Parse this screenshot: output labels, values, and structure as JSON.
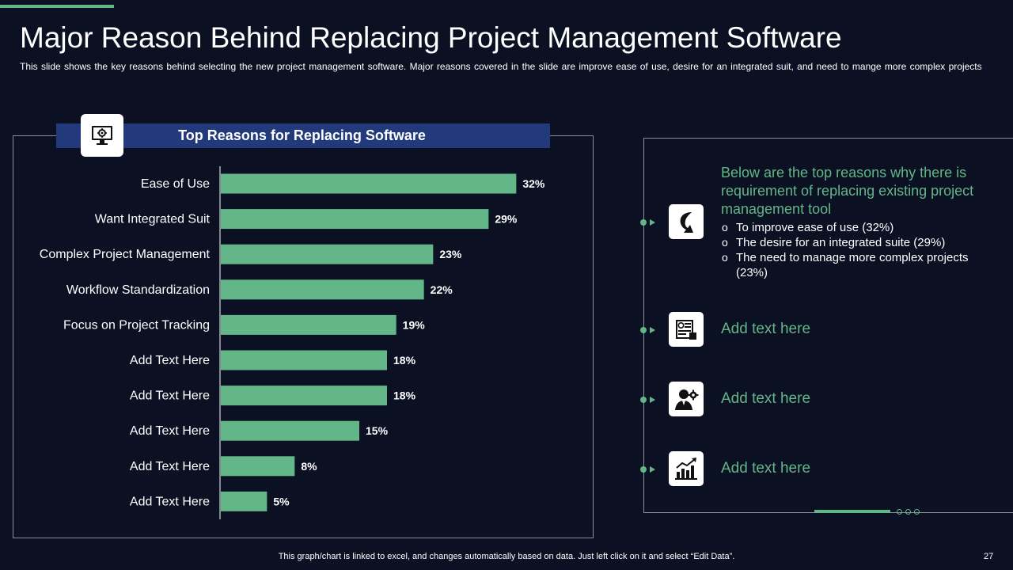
{
  "slide": {
    "title": "Major Reason Behind Replacing Project Management Software",
    "subtitle": "This slide shows the key reasons behind  selecting the new project management  software.  Major reasons covered  in the slide are improve  ease of use,  desire for an integrated  suit, and need to mange more complex projects",
    "footer": "This graph/chart is linked to excel,  and changes automatically based on data. Just left click on it and select “Edit Data”.",
    "page_number": "27"
  },
  "colors": {
    "background": "#0b1023",
    "accent_green": "#62b688",
    "header_blue": "#223a7c",
    "bar_green": "#62b688"
  },
  "chart_data": {
    "type": "bar",
    "orientation": "horizontal",
    "title": "Top Reasons for Replacing Software",
    "categories": [
      "Ease of Use",
      "Want Integrated Suit",
      "Complex Project Management",
      "Workflow Standardization",
      "Focus on Project Tracking",
      "Add Text Here",
      "Add Text Here",
      "Add Text Here",
      "Add Text Here",
      "Add Text Here"
    ],
    "values": [
      32,
      29,
      23,
      22,
      19,
      18,
      18,
      15,
      8,
      5
    ],
    "value_labels": [
      "32%",
      "29%",
      "23%",
      "22%",
      "19%",
      "18%",
      "18%",
      "15%",
      "8%",
      "5%"
    ],
    "unit": "%",
    "xlim": [
      0,
      36
    ],
    "grid": false,
    "xlabel": "",
    "ylabel": ""
  },
  "right_panel": {
    "intro": "Below are the top reasons why there is requirement of replacing existing project management tool",
    "bullets": [
      "To improve ease of use (32%)",
      "The desire for an integrated suite (29%)",
      "The need to manage more complex projects (23%)"
    ],
    "items": [
      {
        "icon": "arrow-turn-icon"
      },
      {
        "icon": "document-settings-icon",
        "text": "Add text here"
      },
      {
        "icon": "person-gear-icon",
        "text": "Add text here"
      },
      {
        "icon": "growth-chart-icon",
        "text": "Add text here"
      }
    ]
  }
}
